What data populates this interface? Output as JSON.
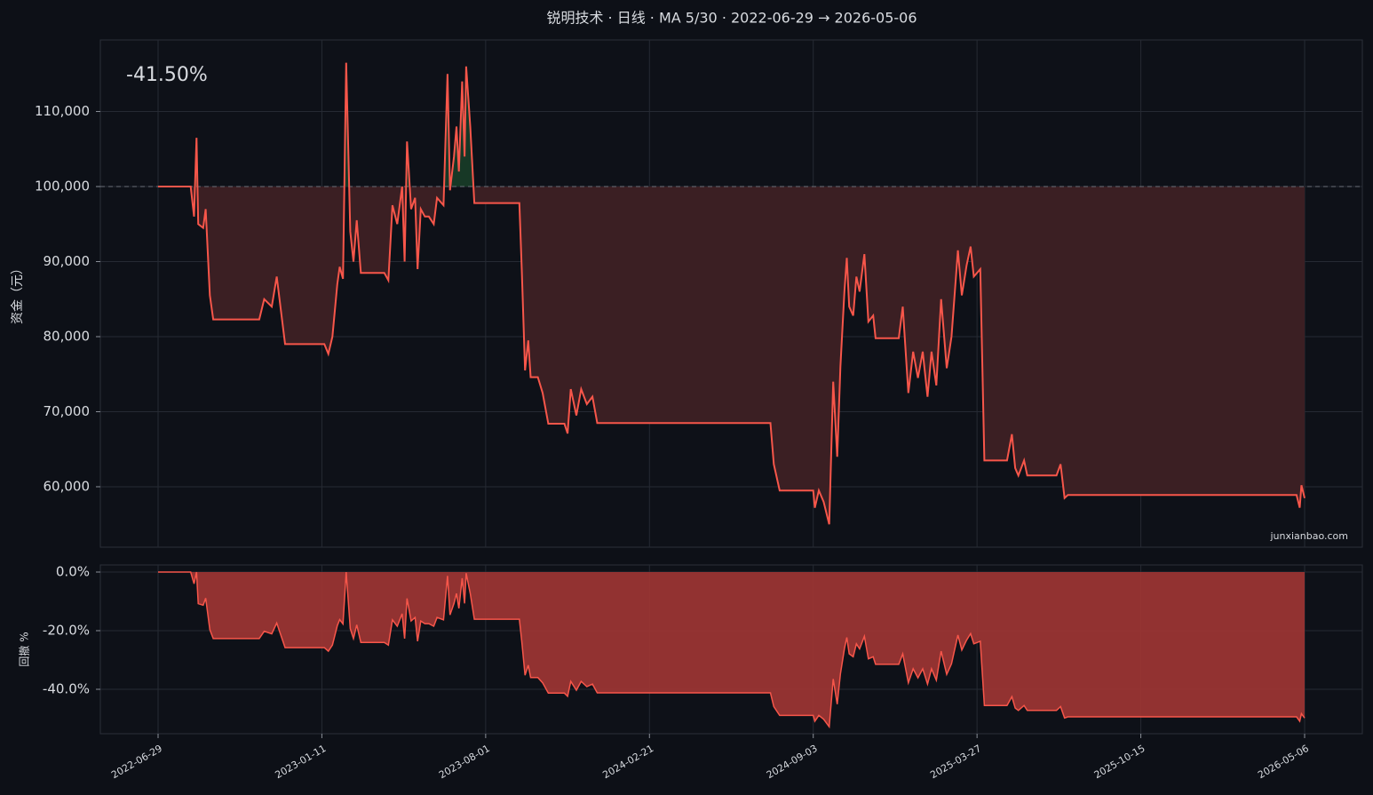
{
  "chart_data": [
    {
      "type": "line",
      "title": "锐明技术 · 日线 · MA 5/30 · 2022-06-29 → 2026-05-06",
      "annotation": "-41.50%",
      "watermark": "junxianbao.com",
      "y_label": "资金（元）",
      "baseline": 100000,
      "color": "#f7564a",
      "fill_below": "#3b1f23",
      "fill_above": "#173826",
      "grid": true,
      "x": [
        "2022-06-29",
        "2022-08-07",
        "2022-08-11",
        "2022-08-14",
        "2022-08-16",
        "2022-08-22",
        "2022-08-25",
        "2022-08-30",
        "2022-09-03",
        "2022-10-28",
        "2022-11-03",
        "2022-11-12",
        "2022-11-18",
        "2022-11-28",
        "2023-01-14",
        "2023-01-19",
        "2023-01-24",
        "2023-01-30",
        "2023-02-02",
        "2023-02-06",
        "2023-02-10",
        "2023-02-15",
        "2023-02-19",
        "2023-02-23",
        "2023-02-28",
        "2023-03-29",
        "2023-04-03",
        "2023-04-08",
        "2023-04-14",
        "2023-04-20",
        "2023-04-23",
        "2023-04-26",
        "2023-05-01",
        "2023-05-06",
        "2023-05-09",
        "2023-05-13",
        "2023-05-18",
        "2023-05-23",
        "2023-05-29",
        "2023-06-02",
        "2023-06-10",
        "2023-06-15",
        "2023-06-18",
        "2023-06-23",
        "2023-06-26",
        "2023-06-29",
        "2023-07-03",
        "2023-07-06",
        "2023-07-08",
        "2023-07-13",
        "2023-07-18",
        "2023-09-12",
        "2023-09-15",
        "2023-09-19",
        "2023-09-23",
        "2023-09-26",
        "2023-10-05",
        "2023-10-11",
        "2023-10-18",
        "2023-11-07",
        "2023-11-11",
        "2023-11-15",
        "2023-11-22",
        "2023-11-28",
        "2023-12-05",
        "2023-12-12",
        "2023-12-18",
        "2024-07-14",
        "2024-07-18",
        "2024-07-25",
        "2024-09-03",
        "2024-09-05",
        "2024-09-10",
        "2024-09-16",
        "2024-09-23",
        "2024-09-28",
        "2024-10-03",
        "2024-10-07",
        "2024-10-12",
        "2024-10-15",
        "2024-10-18",
        "2024-10-23",
        "2024-10-27",
        "2024-10-31",
        "2024-11-06",
        "2024-11-11",
        "2024-11-17",
        "2024-11-20",
        "2024-12-19",
        "2024-12-24",
        "2024-12-31",
        "2025-01-06",
        "2025-01-12",
        "2025-01-18",
        "2025-01-24",
        "2025-01-29",
        "2025-02-04",
        "2025-02-10",
        "2025-02-17",
        "2025-02-23",
        "2025-03-03",
        "2025-03-08",
        "2025-03-14",
        "2025-03-19",
        "2025-03-23",
        "2025-03-31",
        "2025-04-05",
        "2025-05-03",
        "2025-05-09",
        "2025-05-13",
        "2025-05-17",
        "2025-05-24",
        "2025-05-28",
        "2025-07-03",
        "2025-07-08",
        "2025-07-13",
        "2025-07-17",
        "2026-04-26",
        "2026-04-30",
        "2026-05-02",
        "2026-05-06"
      ],
      "values": [
        100000,
        100000,
        96000,
        106500,
        95000,
        94500,
        97000,
        85500,
        82300,
        82300,
        85000,
        84000,
        88000,
        79000,
        79000,
        77700,
        80000,
        87000,
        89300,
        87700,
        116500,
        94000,
        90000,
        95500,
        88500,
        88500,
        87500,
        97500,
        95000,
        100000,
        90000,
        106000,
        97000,
        98500,
        89000,
        97000,
        96000,
        96000,
        95000,
        98500,
        97500,
        115000,
        99500,
        104000,
        108000,
        102000,
        114000,
        104000,
        116000,
        108000,
        97800,
        97800,
        89000,
        75500,
        79500,
        74600,
        74600,
        72500,
        68400,
        68400,
        67100,
        73000,
        69500,
        73000,
        71000,
        72000,
        68500,
        68500,
        63000,
        59500,
        59500,
        57200,
        59500,
        58000,
        55000,
        74000,
        64000,
        76000,
        86000,
        90500,
        84000,
        82800,
        88000,
        86000,
        91000,
        82000,
        82800,
        79800,
        79800,
        84000,
        72500,
        78000,
        74500,
        78000,
        72000,
        78000,
        73500,
        85000,
        75800,
        80000,
        91500,
        85500,
        89500,
        92000,
        88000,
        89000,
        63500,
        63500,
        67000,
        62500,
        61500,
        63500,
        61500,
        61500,
        63000,
        58500,
        58900,
        58900,
        57200,
        60200,
        58500
      ],
      "ylim": [
        51950,
        119530
      ],
      "yticks": [
        {
          "value": 60000,
          "label": "60,000"
        },
        {
          "value": 70000,
          "label": "70,000"
        },
        {
          "value": 80000,
          "label": "80,000"
        },
        {
          "value": 90000,
          "label": "90,000"
        },
        {
          "value": 100000,
          "label": "100,000"
        },
        {
          "value": 110000,
          "label": "110,000"
        }
      ]
    },
    {
      "type": "area",
      "y_label": "回撤 %",
      "color": "#f7564a",
      "fill": "#9a3533",
      "grid": true,
      "x": [
        "2022-06-29",
        "2022-08-07",
        "2022-08-11",
        "2022-08-14",
        "2022-08-16",
        "2022-08-22",
        "2022-08-25",
        "2022-08-30",
        "2022-09-03",
        "2022-10-28",
        "2022-11-03",
        "2022-11-12",
        "2022-11-18",
        "2022-11-28",
        "2023-01-14",
        "2023-01-19",
        "2023-01-24",
        "2023-01-30",
        "2023-02-02",
        "2023-02-06",
        "2023-02-10",
        "2023-02-15",
        "2023-02-19",
        "2023-02-23",
        "2023-02-28",
        "2023-03-29",
        "2023-04-03",
        "2023-04-08",
        "2023-04-14",
        "2023-04-20",
        "2023-04-23",
        "2023-04-26",
        "2023-05-01",
        "2023-05-06",
        "2023-05-09",
        "2023-05-13",
        "2023-05-18",
        "2023-05-23",
        "2023-05-29",
        "2023-06-02",
        "2023-06-10",
        "2023-06-15",
        "2023-06-18",
        "2023-06-23",
        "2023-06-26",
        "2023-06-29",
        "2023-07-03",
        "2023-07-06",
        "2023-07-08",
        "2023-07-13",
        "2023-07-18",
        "2023-09-12",
        "2023-09-15",
        "2023-09-19",
        "2023-09-23",
        "2023-09-26",
        "2023-10-05",
        "2023-10-11",
        "2023-10-18",
        "2023-11-07",
        "2023-11-11",
        "2023-11-15",
        "2023-11-22",
        "2023-11-28",
        "2023-12-05",
        "2023-12-12",
        "2023-12-18",
        "2024-07-14",
        "2024-07-18",
        "2024-07-25",
        "2024-09-03",
        "2024-09-05",
        "2024-09-10",
        "2024-09-16",
        "2024-09-23",
        "2024-09-28",
        "2024-10-03",
        "2024-10-07",
        "2024-10-12",
        "2024-10-15",
        "2024-10-18",
        "2024-10-23",
        "2024-10-27",
        "2024-10-31",
        "2024-11-06",
        "2024-11-11",
        "2024-11-17",
        "2024-11-20",
        "2024-12-19",
        "2024-12-24",
        "2024-12-31",
        "2025-01-06",
        "2025-01-12",
        "2025-01-18",
        "2025-01-24",
        "2025-01-29",
        "2025-02-04",
        "2025-02-10",
        "2025-02-17",
        "2025-02-23",
        "2025-03-03",
        "2025-03-08",
        "2025-03-14",
        "2025-03-19",
        "2025-03-23",
        "2025-03-31",
        "2025-04-05",
        "2025-05-03",
        "2025-05-09",
        "2025-05-13",
        "2025-05-17",
        "2025-05-24",
        "2025-05-28",
        "2025-07-03",
        "2025-07-08",
        "2025-07-13",
        "2025-07-17",
        "2026-04-26",
        "2026-04-30",
        "2026-05-02",
        "2026-05-06"
      ],
      "values": [
        0,
        0,
        -4.0,
        0,
        -10.8,
        -11.3,
        -8.9,
        -19.7,
        -22.7,
        -22.7,
        -20.2,
        -21.1,
        -17.4,
        -25.8,
        -25.8,
        -27.0,
        -24.9,
        -18.3,
        -16.2,
        -17.7,
        0,
        -19.3,
        -22.7,
        -18.0,
        -24.0,
        -24.0,
        -24.9,
        -16.3,
        -18.5,
        -14.2,
        -22.7,
        -9.0,
        -16.7,
        -15.5,
        -23.6,
        -16.7,
        -17.6,
        -17.6,
        -18.5,
        -15.5,
        -16.3,
        -1.3,
        -14.6,
        -10.7,
        -7.3,
        -12.4,
        -2.1,
        -10.7,
        -0.4,
        -7.3,
        -16.1,
        -16.1,
        -23.6,
        -35.2,
        -31.8,
        -36.0,
        -36.0,
        -37.8,
        -41.3,
        -41.3,
        -42.4,
        -37.3,
        -40.3,
        -37.3,
        -39.1,
        -38.2,
        -41.2,
        -41.2,
        -45.9,
        -48.9,
        -48.9,
        -50.9,
        -48.9,
        -50.2,
        -52.8,
        -36.5,
        -45.1,
        -34.8,
        -26.2,
        -22.3,
        -27.9,
        -28.9,
        -24.5,
        -26.2,
        -21.9,
        -29.6,
        -28.9,
        -31.5,
        -31.5,
        -27.9,
        -37.8,
        -33.0,
        -36.1,
        -33.0,
        -38.2,
        -33.0,
        -36.9,
        -27.0,
        -34.9,
        -31.3,
        -21.5,
        -26.6,
        -23.2,
        -21.0,
        -24.5,
        -23.6,
        -45.5,
        -45.5,
        -42.5,
        -46.4,
        -47.2,
        -45.5,
        -47.2,
        -47.2,
        -45.9,
        -49.8,
        -49.4,
        -49.4,
        -50.9,
        -48.3,
        -49.8
      ],
      "ylim": [
        -55.15,
        2.42
      ],
      "yticks": [
        {
          "value": 0,
          "label": "0.0%"
        },
        {
          "value": -20,
          "label": "-20.0%"
        },
        {
          "value": -40,
          "label": "-40.0%"
        }
      ],
      "xlim": [
        "2022-04-21",
        "2026-07-16"
      ],
      "xticks": [
        "2022-06-29",
        "2023-01-11",
        "2023-08-01",
        "2024-02-21",
        "2024-09-03",
        "2025-03-27",
        "2025-10-15",
        "2026-05-06"
      ]
    }
  ]
}
